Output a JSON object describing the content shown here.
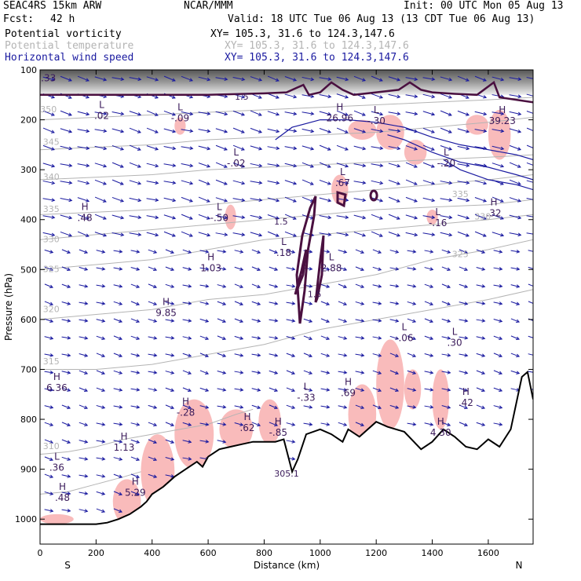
{
  "header": {
    "model": "SEAC4RS 15km ARW",
    "fcst_label": "Fcst:",
    "fcst_value": "42 h",
    "org": "NCAR/MMM",
    "init": "Init: 00 UTC Mon 05 Aug 13",
    "valid": "Valid: 18 UTC Tue 06 Aug 13 (13 CDT Tue 06 Aug 13)"
  },
  "fields": [
    {
      "name": "Potential vorticity",
      "xy": "XY= 105.3, 31.6 to 124.3,147.6",
      "color": "#000000"
    },
    {
      "name": "Potential temperature",
      "xy": "XY= 105.3, 31.6 to 124.3,147.6",
      "color": "#b4b4b4"
    },
    {
      "name": "Horizontal wind speed",
      "xy": "XY= 105.3, 31.6 to 124.3,147.6",
      "color": "#1a1aa0"
    }
  ],
  "chart_data": {
    "type": "cross-section",
    "xlabel": "Distance (km)",
    "ylabel": "Pressure (hPa)",
    "xlim": [
      0,
      1760
    ],
    "ylim": [
      1050,
      100
    ],
    "x_ticks": [
      0,
      200,
      400,
      600,
      800,
      1000,
      1200,
      1400,
      1600
    ],
    "y_ticks": [
      100,
      200,
      300,
      400,
      500,
      600,
      700,
      800,
      900,
      1000
    ],
    "x_end_labels": {
      "left": "S",
      "right": "N"
    },
    "colors": {
      "wind": "#1a1aa0",
      "theta": "#b4b4b4",
      "pv": "#4a1040",
      "terrain": "#000000",
      "pink_fill": "#f8b4b4",
      "hl_label": "#3a1a5a"
    },
    "terrain": {
      "x": [
        0,
        80,
        160,
        200,
        240,
        280,
        320,
        360,
        380,
        400,
        440,
        480,
        520,
        560,
        580,
        600,
        640,
        680,
        720,
        760,
        800,
        840,
        870,
        900,
        920,
        950,
        1000,
        1040,
        1080,
        1100,
        1140,
        1200,
        1240,
        1300,
        1360,
        1400,
        1440,
        1480,
        1520,
        1560,
        1600,
        1640,
        1680,
        1720,
        1740,
        1760
      ],
      "p": [
        1010,
        1010,
        1010,
        1010,
        1007,
        1000,
        990,
        975,
        965,
        950,
        935,
        915,
        900,
        885,
        895,
        875,
        860,
        855,
        850,
        845,
        845,
        845,
        840,
        905,
        880,
        830,
        820,
        830,
        845,
        820,
        835,
        805,
        815,
        825,
        860,
        845,
        820,
        835,
        855,
        860,
        840,
        855,
        820,
        715,
        705,
        760
      ]
    },
    "potential_temperature": {
      "lines": [
        {
          "label": "315",
          "points": [
            [
              0,
              700
            ],
            [
              200,
              700
            ],
            [
              400,
              690
            ],
            [
              600,
              670
            ],
            [
              800,
              650
            ],
            [
              1000,
              620
            ],
            [
              1200,
              600
            ],
            [
              1400,
              580
            ],
            [
              1600,
              560
            ],
            [
              1760,
              540
            ]
          ]
        },
        {
          "label": "320",
          "points": [
            [
              0,
              600
            ],
            [
              200,
              590
            ],
            [
              400,
              580
            ],
            [
              600,
              560
            ],
            [
              800,
              550
            ],
            [
              1000,
              530
            ],
            [
              1200,
              510
            ],
            [
              1400,
              480
            ],
            [
              1600,
              460
            ],
            [
              1760,
              440
            ]
          ]
        },
        {
          "label": "325",
          "points": [
            [
              0,
              500
            ],
            [
              200,
              490
            ],
            [
              400,
              480
            ],
            [
              600,
              460
            ],
            [
              800,
              440
            ],
            [
              1000,
              430
            ],
            [
              1200,
              420
            ],
            [
              1400,
              410
            ],
            [
              1600,
              400
            ],
            [
              1760,
              390
            ]
          ]
        },
        {
          "label": "330",
          "points": [
            [
              0,
              440
            ],
            [
              200,
              430
            ],
            [
              400,
              420
            ],
            [
              600,
              410
            ],
            [
              800,
              400
            ],
            [
              1000,
              390
            ],
            [
              1200,
              380
            ],
            [
              1400,
              375
            ],
            [
              1600,
              370
            ],
            [
              1760,
              360
            ]
          ]
        },
        {
          "label": "335",
          "points": [
            [
              0,
              390
            ],
            [
              200,
              385
            ],
            [
              400,
              380
            ],
            [
              600,
              370
            ],
            [
              800,
              360
            ],
            [
              1000,
              350
            ],
            [
              1200,
              340
            ],
            [
              1400,
              330
            ],
            [
              1600,
              320
            ],
            [
              1760,
              310
            ]
          ]
        },
        {
          "label": "340",
          "points": [
            [
              0,
              320
            ],
            [
              200,
              315
            ],
            [
              400,
              310
            ],
            [
              600,
              300
            ],
            [
              800,
              295
            ],
            [
              1000,
              290
            ],
            [
              1200,
              285
            ],
            [
              1400,
              280
            ],
            [
              1600,
              275
            ],
            [
              1760,
              270
            ]
          ]
        },
        {
          "label": "345",
          "points": [
            [
              0,
              260
            ],
            [
              200,
              255
            ],
            [
              400,
              250
            ],
            [
              600,
              240
            ],
            [
              800,
              235
            ],
            [
              1000,
              230
            ],
            [
              1200,
              225
            ],
            [
              1400,
              215
            ],
            [
              1600,
              205
            ],
            [
              1760,
              195
            ]
          ]
        },
        {
          "label": "350",
          "points": [
            [
              0,
              200
            ],
            [
              200,
              195
            ],
            [
              400,
              190
            ],
            [
              600,
              185
            ],
            [
              800,
              180
            ],
            [
              1000,
              175
            ],
            [
              1200,
              170
            ],
            [
              1400,
              165
            ],
            [
              1600,
              160
            ],
            [
              1760,
              155
            ]
          ]
        },
        {
          "label": "310",
          "points": [
            [
              0,
              870
            ],
            [
              100,
              865
            ],
            [
              200,
              855
            ],
            [
              300,
              840
            ],
            [
              400,
              830
            ],
            [
              500,
              820
            ],
            [
              600,
              810
            ],
            [
              700,
              790
            ],
            [
              760,
              780
            ]
          ]
        },
        {
          "label": "305",
          "points": [
            [
              0,
              950
            ],
            [
              100,
              945
            ],
            [
              200,
              930
            ],
            [
              300,
              915
            ],
            [
              360,
              905
            ]
          ]
        }
      ]
    },
    "potential_vorticity": {
      "line_1_5": [
        [
          0,
          150
        ],
        [
          200,
          150
        ],
        [
          400,
          150
        ],
        [
          600,
          150
        ],
        [
          800,
          147
        ],
        [
          880,
          145
        ],
        [
          940,
          130
        ],
        [
          960,
          150
        ],
        [
          1000,
          145
        ],
        [
          1040,
          125
        ],
        [
          1080,
          140
        ],
        [
          1120,
          150
        ],
        [
          1200,
          145
        ],
        [
          1280,
          140
        ],
        [
          1320,
          125
        ],
        [
          1360,
          140
        ],
        [
          1400,
          145
        ],
        [
          1480,
          148
        ],
        [
          1560,
          150
        ],
        [
          1620,
          125
        ],
        [
          1640,
          155
        ],
        [
          1700,
          160
        ],
        [
          1760,
          165
        ]
      ]
    },
    "wind_speed_lines": [
      {
        "points": [
          [
            840,
            240
          ],
          [
            900,
            215
          ],
          [
            1000,
            200
          ],
          [
            1100,
            200
          ],
          [
            1200,
            205
          ],
          [
            1300,
            215
          ],
          [
            1400,
            235
          ],
          [
            1500,
            250
          ],
          [
            1600,
            260
          ],
          [
            1700,
            270
          ],
          [
            1760,
            280
          ]
        ]
      },
      {
        "points": [
          [
            1240,
            230
          ],
          [
            1300,
            240
          ],
          [
            1400,
            265
          ],
          [
            1500,
            285
          ],
          [
            1600,
            295
          ],
          [
            1700,
            310
          ],
          [
            1760,
            320
          ]
        ]
      },
      {
        "points": [
          [
            1440,
            280
          ],
          [
            1500,
            300
          ],
          [
            1600,
            320
          ],
          [
            1700,
            330
          ],
          [
            1760,
            340
          ]
        ]
      }
    ],
    "stratosphere_shading": {
      "top_p": 100,
      "bottom_p": 150
    },
    "pink_regions": [
      {
        "x": [
          0,
          120
        ],
        "p": [
          990,
          1010
        ]
      },
      {
        "x": [
          260,
          360
        ],
        "p": [
          920,
          1010
        ]
      },
      {
        "x": [
          360,
          480
        ],
        "p": [
          830,
          980
        ]
      },
      {
        "x": [
          480,
          620
        ],
        "p": [
          760,
          900
        ]
      },
      {
        "x": [
          640,
          760
        ],
        "p": [
          780,
          860
        ]
      },
      {
        "x": [
          780,
          860
        ],
        "p": [
          760,
          850
        ]
      },
      {
        "x": [
          1100,
          1200
        ],
        "p": [
          730,
          850
        ]
      },
      {
        "x": [
          1200,
          1300
        ],
        "p": [
          640,
          820
        ]
      },
      {
        "x": [
          1300,
          1360
        ],
        "p": [
          700,
          780
        ]
      },
      {
        "x": [
          1400,
          1460
        ],
        "p": [
          700,
          820
        ]
      },
      {
        "x": [
          480,
          520
        ],
        "p": [
          195,
          230
        ]
      },
      {
        "x": [
          660,
          700
        ],
        "p": [
          370,
          420
        ]
      },
      {
        "x": [
          1100,
          1200
        ],
        "p": [
          200,
          240
        ]
      },
      {
        "x": [
          1200,
          1300
        ],
        "p": [
          190,
          260
        ]
      },
      {
        "x": [
          1300,
          1380
        ],
        "p": [
          240,
          290
        ]
      },
      {
        "x": [
          1520,
          1600
        ],
        "p": [
          190,
          230
        ]
      },
      {
        "x": [
          1600,
          1680
        ],
        "p": [
          180,
          280
        ]
      },
      {
        "x": [
          1040,
          1100
        ],
        "p": [
          310,
          370
        ]
      },
      {
        "x": [
          1380,
          1420
        ],
        "p": [
          380,
          410
        ]
      }
    ],
    "extrema_labels": [
      {
        "type": "L",
        "value": ".33",
        "x": 30,
        "p": 120
      },
      {
        "type": "L",
        "value": ".02",
        "x": 220,
        "p": 195
      },
      {
        "type": "L",
        "value": "-.09",
        "x": 500,
        "p": 200
      },
      {
        "type": "L",
        "value": "-.02",
        "x": 700,
        "p": 290
      },
      {
        "type": "H",
        "value": "26.96",
        "x": 1070,
        "p": 200
      },
      {
        "type": "L",
        "value": "-.30",
        "x": 1200,
        "p": 205
      },
      {
        "type": "H",
        "value": "39.23",
        "x": 1650,
        "p": 205
      },
      {
        "type": "L",
        "value": "-.20",
        "x": 1450,
        "p": 290
      },
      {
        "type": "L",
        "value": ".67",
        "x": 1080,
        "p": 330
      },
      {
        "type": "H",
        "value": ".48",
        "x": 160,
        "p": 400
      },
      {
        "type": "L",
        "value": "-.50",
        "x": 640,
        "p": 400
      },
      {
        "type": "L",
        "value": "-.16",
        "x": 1420,
        "p": 410
      },
      {
        "type": "H",
        "value": ".32",
        "x": 1620,
        "p": 390
      },
      {
        "type": "H",
        "value": "1.03",
        "x": 610,
        "p": 500
      },
      {
        "type": "L",
        "value": ".18",
        "x": 870,
        "p": 470
      },
      {
        "type": "L",
        "value": "2.88",
        "x": 1040,
        "p": 500
      },
      {
        "type": "H",
        "value": "9.85",
        "x": 450,
        "p": 590
      },
      {
        "type": "L",
        "value": "-.06",
        "x": 1300,
        "p": 640
      },
      {
        "type": "L",
        "value": ".30",
        "x": 1480,
        "p": 650
      },
      {
        "type": "H",
        "value": "6.36",
        "x": 60,
        "p": 740
      },
      {
        "type": "L",
        "value": "-.33",
        "x": 950,
        "p": 760
      },
      {
        "type": "H",
        "value": ".69",
        "x": 1100,
        "p": 750
      },
      {
        "type": "H",
        "value": "-.28",
        "x": 520,
        "p": 790
      },
      {
        "type": "H",
        "value": ".62",
        "x": 740,
        "p": 820
      },
      {
        "type": "H",
        "value": ".42",
        "x": 1520,
        "p": 770
      },
      {
        "type": "H",
        "value": "-.85",
        "x": 850,
        "p": 830
      },
      {
        "type": "H",
        "value": "4.30",
        "x": 1430,
        "p": 830
      },
      {
        "type": "H",
        "value": "1.13",
        "x": 300,
        "p": 860
      },
      {
        "type": "L",
        "value": ".36",
        "x": 60,
        "p": 900
      },
      {
        "type": "H",
        "value": ".48",
        "x": 80,
        "p": 960
      },
      {
        "type": "H",
        "value": "5.29",
        "x": 340,
        "p": 950
      }
    ],
    "contour_labels": [
      {
        "text": "1.5",
        "x": 720,
        "p": 160
      },
      {
        "text": "1.5",
        "x": 860,
        "p": 410
      },
      {
        "text": "1.5",
        "x": 980,
        "p": 555
      },
      {
        "text": "305.1",
        "x": 880,
        "p": 915
      },
      {
        "text": "350",
        "x": 30,
        "p": 185
      },
      {
        "text": "345",
        "x": 40,
        "p": 250
      },
      {
        "text": "340",
        "x": 40,
        "p": 320
      },
      {
        "text": "335",
        "x": 40,
        "p": 385
      },
      {
        "text": "330",
        "x": 40,
        "p": 445
      },
      {
        "text": "325",
        "x": 40,
        "p": 505
      },
      {
        "text": "320",
        "x": 40,
        "p": 585
      },
      {
        "text": "315",
        "x": 40,
        "p": 690
      },
      {
        "text": "310",
        "x": 40,
        "p": 860
      },
      {
        "text": "335",
        "x": 1500,
        "p": 355
      },
      {
        "text": "330",
        "x": 1580,
        "p": 400
      },
      {
        "text": "325",
        "x": 1500,
        "p": 475
      }
    ]
  }
}
